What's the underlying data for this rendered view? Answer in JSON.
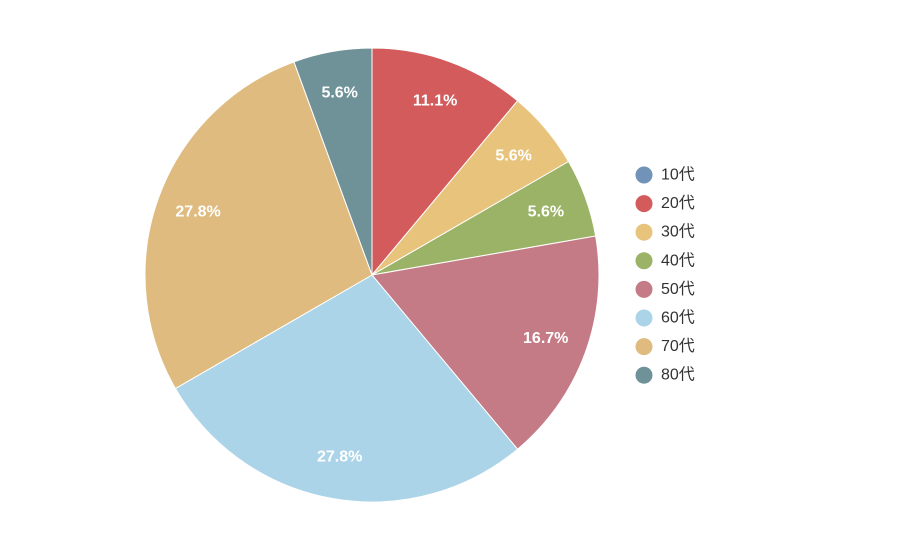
{
  "chart_data": {
    "type": "pie",
    "title": "",
    "categories": [
      "10代",
      "20代",
      "30代",
      "40代",
      "50代",
      "60代",
      "70代",
      "80代"
    ],
    "values": [
      0,
      11.1,
      5.6,
      5.6,
      16.7,
      27.8,
      27.8,
      5.6
    ],
    "value_labels": [
      "",
      "11.1%",
      "5.6%",
      "5.6%",
      "16.7%",
      "27.8%",
      "27.8%",
      "5.6%"
    ],
    "colors": [
      "#7193b8",
      "#d45b5b",
      "#e8c37c",
      "#9bb366",
      "#c57b86",
      "#abd4e8",
      "#dfbb7f",
      "#6f9299"
    ],
    "legend_position": "right",
    "start_angle_deg": -90,
    "direction": "clockwise"
  }
}
